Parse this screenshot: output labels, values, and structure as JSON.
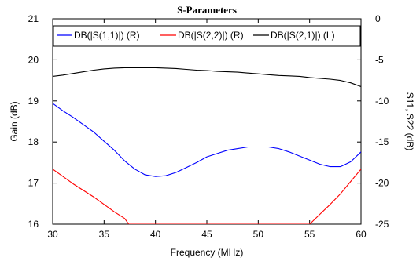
{
  "chart_data": {
    "type": "line",
    "title": "S-Parameters",
    "xlabel": "Frequency (MHz)",
    "ylabel_left": "Gain (dB)",
    "ylabel_right": "S11, S22 (dB)",
    "xlim": [
      30,
      60
    ],
    "ylim_left": [
      16,
      21
    ],
    "ylim_right": [
      -25,
      0
    ],
    "x_ticks": [
      "30",
      "35",
      "40",
      "45",
      "50",
      "55",
      "60"
    ],
    "y_left_ticks": [
      "16",
      "17",
      "18",
      "19",
      "20",
      "21"
    ],
    "y_right_ticks": [
      "-25",
      "-20",
      "-15",
      "-10",
      "-5",
      "0"
    ],
    "grid": false,
    "legend_position": "top",
    "series": [
      {
        "name": "DB(|S(1,1)|) (R)",
        "axis": "right",
        "color": "#0000ff",
        "x": [
          30,
          31,
          32,
          33,
          34,
          35,
          36,
          37,
          38,
          39,
          40,
          41,
          42,
          43,
          44,
          45,
          46,
          47,
          48,
          49,
          50,
          51,
          52,
          53,
          54,
          55,
          56,
          57,
          58,
          59,
          60
        ],
        "y": [
          -10.3,
          -11.2,
          -12.0,
          -12.9,
          -13.8,
          -14.9,
          -16.0,
          -17.3,
          -18.3,
          -19.0,
          -19.2,
          -19.1,
          -18.7,
          -18.1,
          -17.5,
          -16.8,
          -16.4,
          -16.0,
          -15.8,
          -15.6,
          -15.6,
          -15.6,
          -15.8,
          -16.2,
          -16.7,
          -17.2,
          -17.7,
          -18.0,
          -18.0,
          -17.4,
          -16.2
        ]
      },
      {
        "name": "DB(|S(2,2)|) (R)",
        "axis": "right",
        "color": "#ff0000",
        "x": [
          30,
          31,
          32,
          33,
          34,
          35,
          36,
          37,
          37.4,
          55,
          56,
          57,
          58,
          59,
          60
        ],
        "y": [
          -18.3,
          -19.2,
          -20.1,
          -20.9,
          -21.7,
          -22.6,
          -23.5,
          -24.3,
          -25.0,
          -25.0,
          -23.8,
          -22.6,
          -21.3,
          -19.8,
          -18.3
        ]
      },
      {
        "name": "DB(|S(2,1)|) (L)",
        "axis": "left",
        "color": "#000000",
        "x": [
          30,
          31,
          32,
          33,
          34,
          35,
          36,
          37,
          38,
          39,
          40,
          41,
          42,
          43,
          44,
          45,
          46,
          47,
          48,
          49,
          50,
          51,
          52,
          53,
          54,
          55,
          56,
          57,
          58,
          59,
          60
        ],
        "y": [
          19.6,
          19.63,
          19.67,
          19.71,
          19.75,
          19.78,
          19.8,
          19.81,
          19.81,
          19.81,
          19.81,
          19.8,
          19.79,
          19.77,
          19.75,
          19.74,
          19.72,
          19.71,
          19.7,
          19.68,
          19.66,
          19.64,
          19.62,
          19.61,
          19.6,
          19.57,
          19.55,
          19.53,
          19.5,
          19.44,
          19.35
        ]
      }
    ]
  }
}
